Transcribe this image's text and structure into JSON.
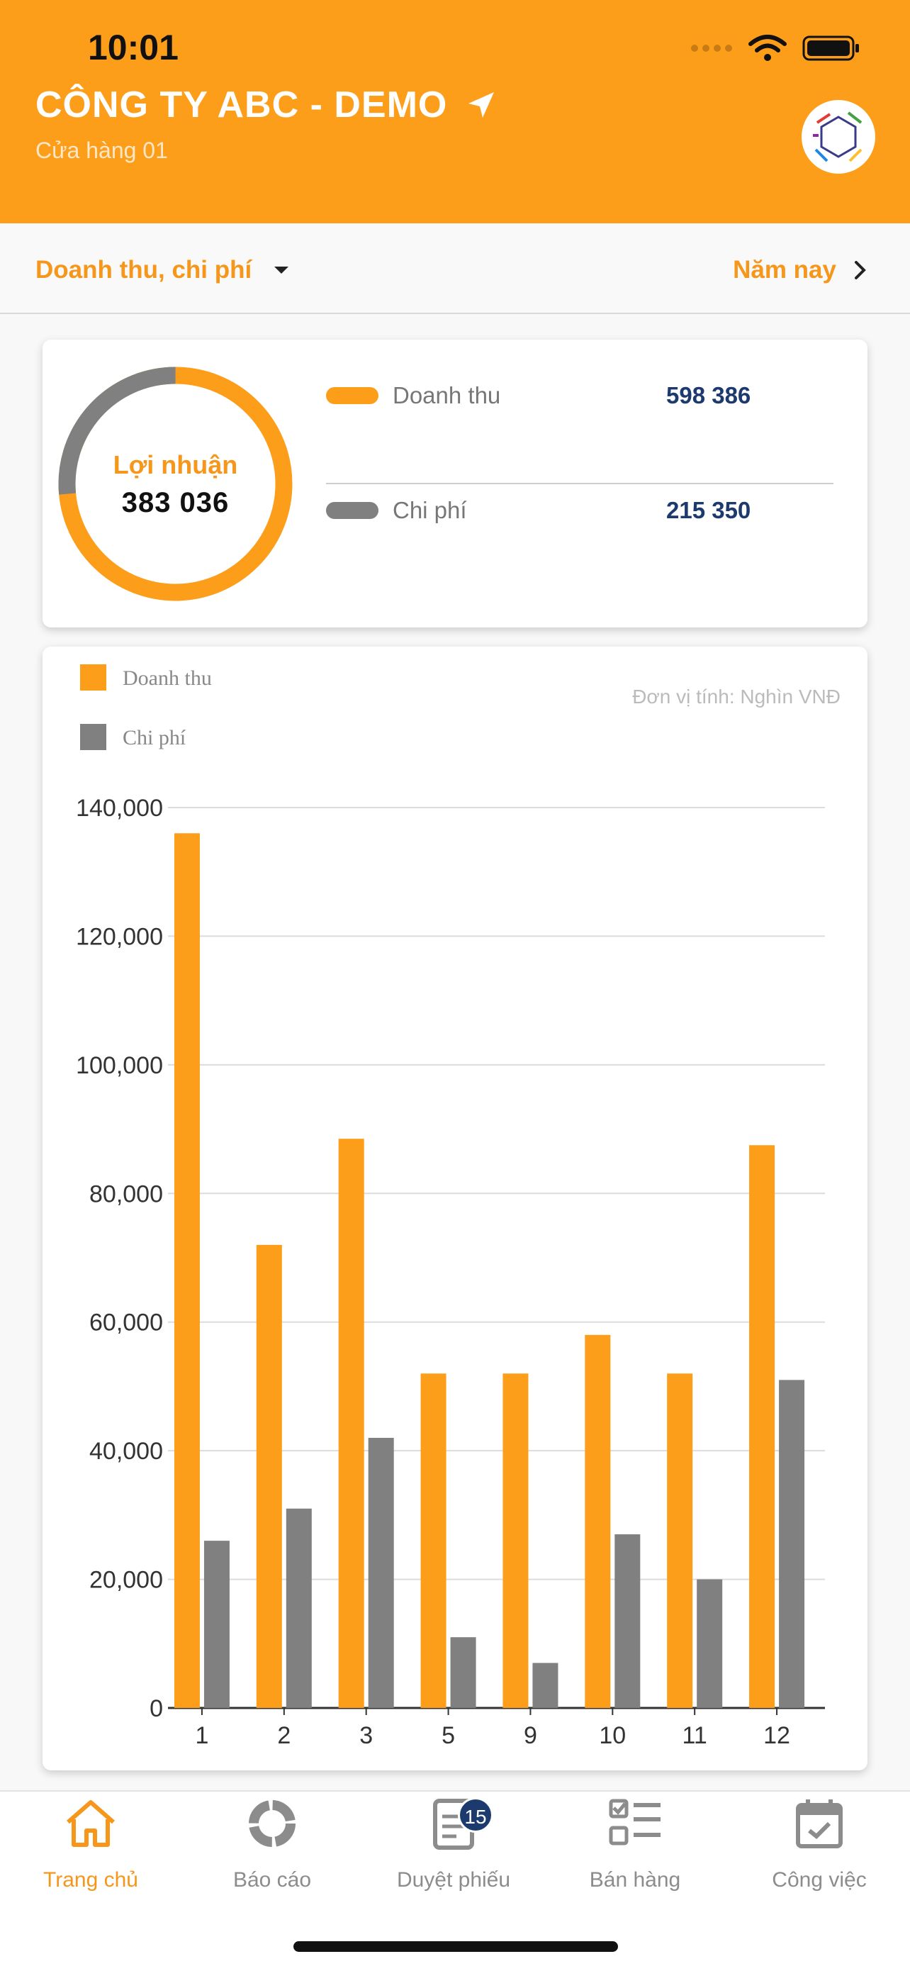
{
  "status": {
    "time": "10:01"
  },
  "header": {
    "company": "CÔNG TY ABC - DEMO",
    "store": "Cửa hàng 01"
  },
  "filter": {
    "metric": "Doanh thu, chi phí",
    "period": "Năm nay"
  },
  "summary": {
    "profit_label": "Lợi nhuận",
    "profit_value": "383 036",
    "revenue_label": "Doanh thu",
    "revenue_value": "598 386",
    "cost_label": "Chi phí",
    "cost_value": "215 350",
    "colors": {
      "revenue": "#fc9e1a",
      "cost": "#808080"
    }
  },
  "chart_data": {
    "type": "bar",
    "unit_note": "Đơn vị tính: Nghìn VNĐ",
    "categories": [
      "1",
      "2",
      "3",
      "5",
      "9",
      "10",
      "11",
      "12"
    ],
    "series": [
      {
        "name": "Doanh thu",
        "color": "#fc9e1a",
        "values": [
          136000,
          72000,
          88500,
          52000,
          52000,
          58000,
          52000,
          87500
        ]
      },
      {
        "name": "Chi phí",
        "color": "#808080",
        "values": [
          26000,
          31000,
          42000,
          11000,
          7000,
          27000,
          20000,
          51000
        ]
      }
    ],
    "ylim": [
      0,
      140000
    ],
    "yticks": [
      "0",
      "20,000",
      "40,000",
      "60,000",
      "80,000",
      "100,000",
      "120,000",
      "140,000"
    ],
    "grid": true,
    "legend": "top-left"
  },
  "nav": {
    "items": [
      {
        "label": "Trang chủ",
        "icon": "home-icon",
        "active": true
      },
      {
        "label": "Báo cáo",
        "icon": "report-icon"
      },
      {
        "label": "Duyệt phiếu",
        "icon": "document-icon",
        "badge": "15"
      },
      {
        "label": "Bán hàng",
        "icon": "checklist-icon"
      },
      {
        "label": "Công việc",
        "icon": "calendar-icon"
      }
    ]
  }
}
